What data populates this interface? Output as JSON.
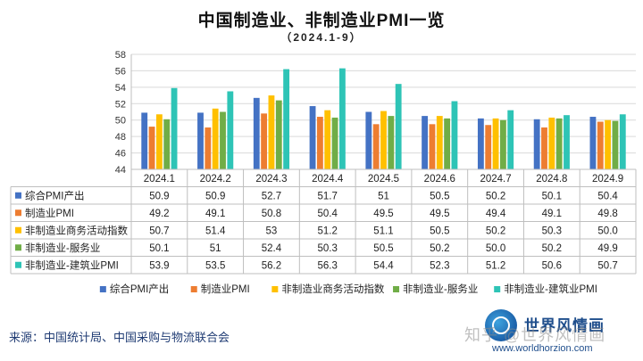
{
  "header": {
    "title": "中国制造业、非制造业PMI一览",
    "subtitle": "（2024.1-9）"
  },
  "chart_data": {
    "type": "bar",
    "categories": [
      "2024.1",
      "2024.2",
      "2024.3",
      "2024.4",
      "2024.5",
      "2024.6",
      "2024.7",
      "2024.8",
      "2024.9"
    ],
    "ylim": [
      44,
      58
    ],
    "yticks": [
      44,
      46,
      48,
      50,
      52,
      54,
      56,
      58
    ],
    "grid": true,
    "legend": "bottom",
    "series": [
      {
        "name": "综合PMI产出",
        "color": "#4472c4",
        "values": [
          50.9,
          50.9,
          52.7,
          51.7,
          51,
          50.5,
          50.2,
          50.1,
          50.4
        ],
        "labels": [
          "50.9",
          "50.9",
          "52.7",
          "51.7",
          "51",
          "50.5",
          "50.2",
          "50.1",
          "50.4"
        ]
      },
      {
        "name": "制造业PMI",
        "color": "#ed7d31",
        "values": [
          49.2,
          49.1,
          50.8,
          50.4,
          49.5,
          49.5,
          49.4,
          49.1,
          49.8
        ],
        "labels": [
          "49.2",
          "49.1",
          "50.8",
          "50.4",
          "49.5",
          "49.5",
          "49.4",
          "49.1",
          "49.8"
        ]
      },
      {
        "name": "非制造业商务活动指数",
        "color": "#ffc000",
        "values": [
          50.7,
          51.4,
          53,
          51.2,
          51.1,
          50.5,
          50.2,
          50.3,
          50.0
        ],
        "labels": [
          "50.7",
          "51.4",
          "53",
          "51.2",
          "51.1",
          "50.5",
          "50.2",
          "50.3",
          "50.0"
        ]
      },
      {
        "name": "非制造业-服务业",
        "color": "#70ad47",
        "values": [
          50.1,
          51,
          52.4,
          50.3,
          50.5,
          50.2,
          50.0,
          50.2,
          49.9
        ],
        "labels": [
          "50.1",
          "51",
          "52.4",
          "50.3",
          "50.5",
          "50.2",
          "50.0",
          "50.2",
          "49.9"
        ]
      },
      {
        "name": "非制造业-建筑业PMI",
        "color": "#2ec4b6",
        "values": [
          53.9,
          53.5,
          56.2,
          56.3,
          54.4,
          52.3,
          51.2,
          50.6,
          50.7
        ],
        "labels": [
          "53.9",
          "53.5",
          "56.2",
          "56.3",
          "54.4",
          "52.3",
          "51.2",
          "50.6",
          "50.7"
        ]
      }
    ]
  },
  "footer": {
    "source": "来源：中国统计局、中国采购与物流联合会",
    "logo_name": "世界风情画",
    "logo_url": "www.worldhorzion.com",
    "watermark": "知乎 @世界风情画"
  }
}
